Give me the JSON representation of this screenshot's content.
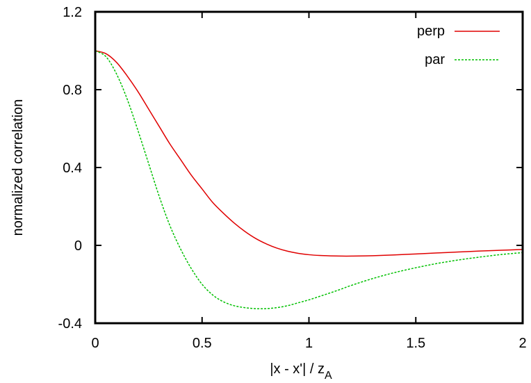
{
  "chart_data": {
    "type": "line",
    "xlabel": "|x - x'| / z",
    "xlabel_sub": "A",
    "ylabel": "normalized correlation",
    "xlim": [
      0,
      2
    ],
    "ylim": [
      -0.4,
      1.2
    ],
    "x_ticks": [
      0,
      0.5,
      1,
      1.5,
      2
    ],
    "x_tick_labels": [
      "0",
      "0.5",
      "1",
      "1.5",
      "2"
    ],
    "y_ticks": [
      -0.4,
      0,
      0.4,
      0.8,
      1.2
    ],
    "y_tick_labels": [
      "-0.4",
      "0",
      "0.4",
      "0.8",
      "1.2"
    ],
    "grid": false,
    "legend_position": "top-right",
    "x": [
      0,
      0.05,
      0.1,
      0.15,
      0.2,
      0.25,
      0.3,
      0.35,
      0.4,
      0.45,
      0.5,
      0.55,
      0.6,
      0.65,
      0.7,
      0.75,
      0.8,
      0.85,
      0.9,
      0.95,
      1.0,
      1.05,
      1.1,
      1.15,
      1.2,
      1.3,
      1.4,
      1.5,
      1.6,
      1.7,
      1.8,
      1.9,
      2.0
    ],
    "series": [
      {
        "name": "perp",
        "color": "#e00000",
        "dash": "solid",
        "values": [
          1.0,
          0.985,
          0.94,
          0.87,
          0.79,
          0.7,
          0.61,
          0.52,
          0.44,
          0.36,
          0.29,
          0.22,
          0.165,
          0.115,
          0.072,
          0.036,
          0.008,
          -0.014,
          -0.03,
          -0.041,
          -0.048,
          -0.052,
          -0.054,
          -0.055,
          -0.055,
          -0.053,
          -0.049,
          -0.044,
          -0.039,
          -0.034,
          -0.029,
          -0.025,
          -0.021
        ]
      },
      {
        "name": "par",
        "color": "#00c000",
        "dash": "dashed",
        "values": [
          1.0,
          0.97,
          0.88,
          0.75,
          0.59,
          0.42,
          0.25,
          0.1,
          -0.02,
          -0.12,
          -0.2,
          -0.255,
          -0.29,
          -0.31,
          -0.32,
          -0.325,
          -0.325,
          -0.32,
          -0.31,
          -0.295,
          -0.28,
          -0.262,
          -0.244,
          -0.225,
          -0.205,
          -0.17,
          -0.14,
          -0.115,
          -0.093,
          -0.075,
          -0.06,
          -0.047,
          -0.037
        ]
      }
    ]
  }
}
